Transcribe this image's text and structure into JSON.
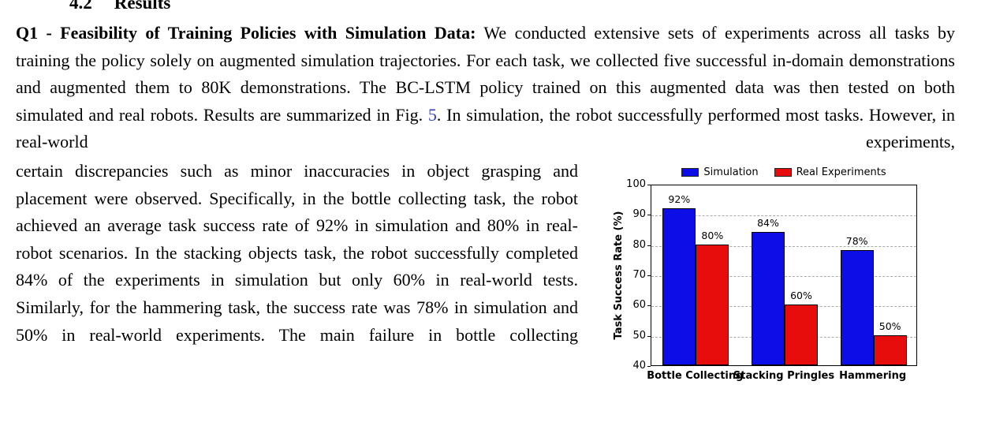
{
  "page": {
    "section_heading": {
      "number": "4.2",
      "title": "Results"
    },
    "paragraph": {
      "lead_bold": "Q1 - Feasibility of Training Policies with Simulation Data:",
      "part1": " We conducted extensive sets of experiments across all tasks by training the policy solely on augmented simulation trajectories. For each task, we collected five successful in-domain demonstrations and augmented them to 80K demonstrations. The BC-LSTM policy trained on this augmented data was then tested on both simulated and real robots. Results are summarized in Fig. ",
      "fig_ref": "5",
      "part2": ". In simulation, the robot successfully performed most tasks. However, in real-world experiments,",
      "part3": "certain discrepancies such as minor inaccuracies in object grasping and placement were observed. Specifically, in the bottle collecting task, the robot achieved an average task success rate of 92% in simulation and 80% in real-robot scenarios. In the stacking objects task, the robot successfully completed 84% of the experiments in simulation but only 60% in real-world tests. Similarly, for the hammering task, the success rate was 78% in simulation and 50% in real-world experiments. The main failure in bottle collecting"
    },
    "link_color": "#2F3FBF"
  },
  "chart_data": {
    "type": "bar",
    "title": "",
    "xlabel": "",
    "ylabel": "Task Success Rate (%)",
    "ylim": [
      40,
      100
    ],
    "yticks": [
      40,
      50,
      60,
      70,
      80,
      90,
      100
    ],
    "categories": [
      "Bottle Collecting",
      "Stacking Pringles",
      "Hammering"
    ],
    "series": [
      {
        "name": "Simulation",
        "color": "#0D0DE8",
        "values": [
          92,
          84,
          78
        ]
      },
      {
        "name": "Real Experiments",
        "color": "#E80D0D",
        "values": [
          80,
          60,
          50
        ]
      }
    ],
    "bar_label_suffix": "%",
    "legend_position": "top center",
    "grid": "horizontal dashed"
  }
}
